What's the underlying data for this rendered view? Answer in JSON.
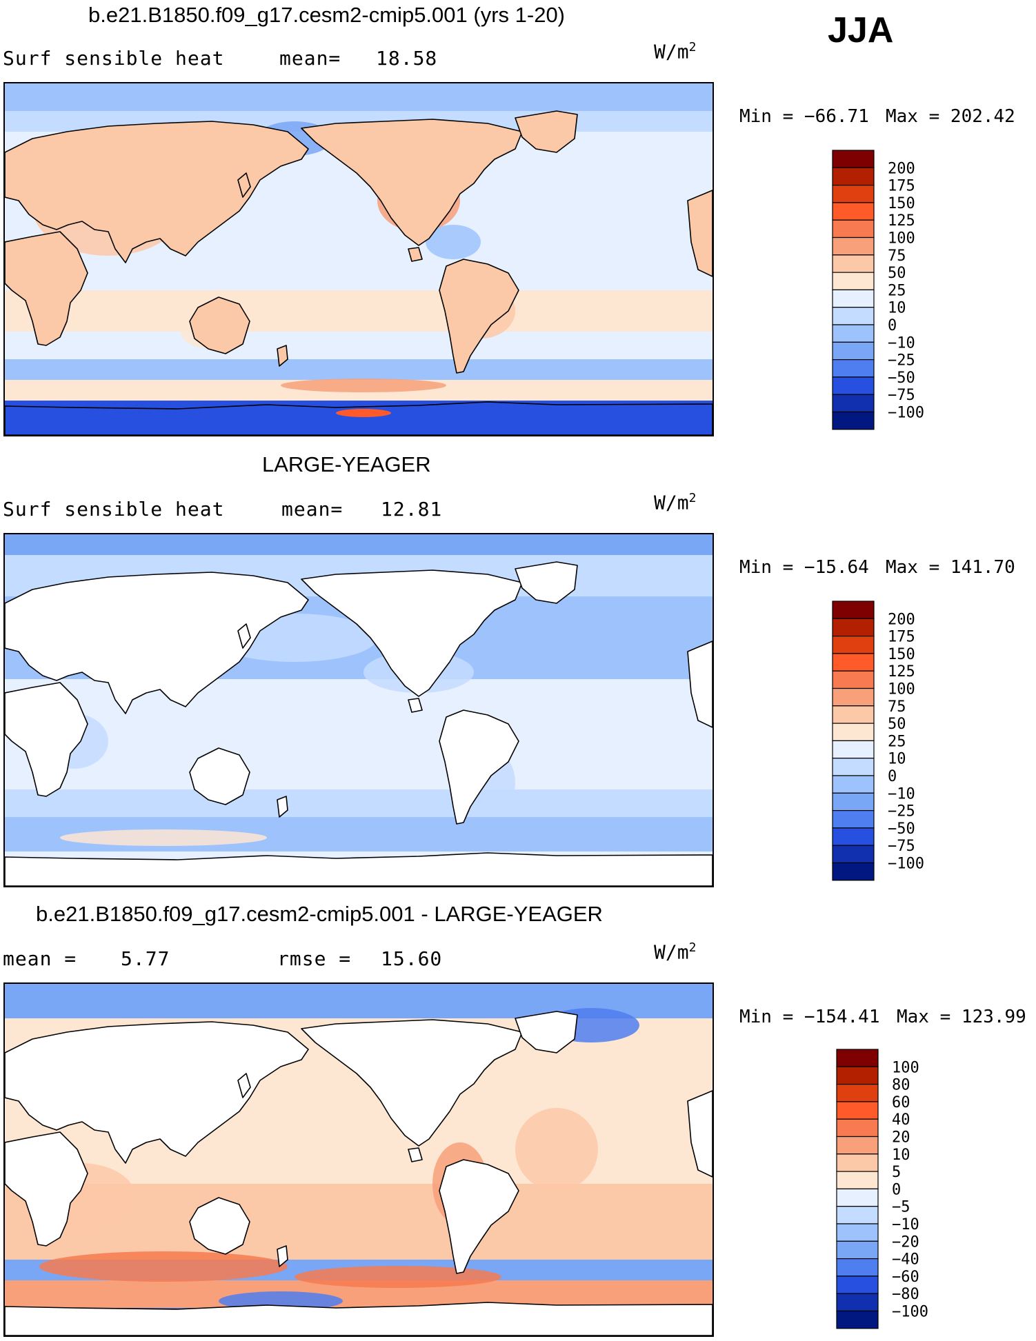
{
  "season": "JJA",
  "units_base": "W/m",
  "units_exp": "2",
  "panels": [
    {
      "title": "b.e21.B1850.f09_g17.cesm2-cmip5.001 (yrs 1-20)",
      "left_label": "Surf sensible heat",
      "center_label": "mean=",
      "center_value": "18.58",
      "min_label": "Min = −66.71",
      "max_label": "Max = 202.42",
      "map_style": "model",
      "colorbar": [
        "200",
        "175",
        "150",
        "125",
        "100",
        "75",
        "50",
        "25",
        "10",
        "0",
        "−10",
        "−25",
        "−50",
        "−75",
        "−100"
      ]
    },
    {
      "title": "LARGE-YEAGER",
      "left_label": "Surf sensible heat",
      "center_label": "mean=",
      "center_value": "12.81",
      "min_label": "Min = −15.64",
      "max_label": "Max = 141.70",
      "map_style": "obs",
      "colorbar": [
        "200",
        "175",
        "150",
        "125",
        "100",
        "75",
        "50",
        "25",
        "10",
        "0",
        "−10",
        "−25",
        "−50",
        "−75",
        "−100"
      ]
    },
    {
      "title": "b.e21.B1850.f09_g17.cesm2-cmip5.001 - LARGE-YEAGER",
      "left_label": "mean =",
      "left_value": "5.77",
      "center_label": "rmse =",
      "center_value": "15.60",
      "min_label": "Min = −154.41",
      "max_label": "Max = 123.99",
      "map_style": "diff",
      "colorbar": [
        "100",
        "80",
        "60",
        "40",
        "20",
        "10",
        "5",
        "0",
        "−5",
        "−10",
        "−20",
        "−40",
        "−60",
        "−80",
        "−100"
      ]
    }
  ],
  "colors": {
    "scale": [
      "#7f0000",
      "#b22000",
      "#e0400f",
      "#ff5a2a",
      "#f77a50",
      "#f7a07a",
      "#fbc8a8",
      "#fde6d2",
      "#e6f0ff",
      "#c4dcff",
      "#9ec3fc",
      "#7aa6f6",
      "#4f7ef0",
      "#2850e0",
      "#1030b0",
      "#001880"
    ],
    "land": "#ffffff",
    "coast": "#000000"
  }
}
